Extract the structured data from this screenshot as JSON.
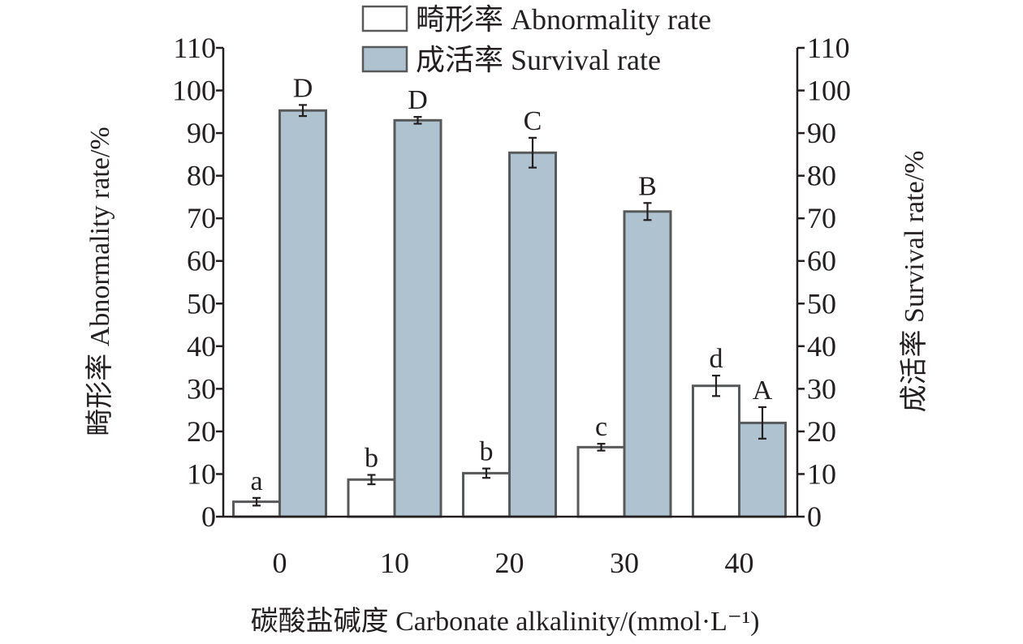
{
  "chart_data": {
    "type": "bar",
    "categories": [
      "0",
      "10",
      "20",
      "30",
      "40"
    ],
    "series": [
      {
        "name": "畸形率 Abnormality rate",
        "values": [
          3.5,
          8.7,
          10.2,
          16.3,
          30.7
        ],
        "errors": [
          0.9,
          1.1,
          1.1,
          0.8,
          2.4
        ],
        "letters": [
          "a",
          "b",
          "b",
          "c",
          "d"
        ],
        "color": "#ffffff",
        "axis": "left"
      },
      {
        "name": "成活率 Survival rate",
        "values": [
          95.3,
          93.0,
          85.4,
          71.6,
          22.0
        ],
        "errors": [
          1.3,
          0.8,
          3.5,
          2.0,
          3.7
        ],
        "letters": [
          "D",
          "D",
          "C",
          "B",
          "A"
        ],
        "color": "#aec3cf",
        "axis": "right"
      }
    ],
    "xlabel": "碳酸盐碱度 Carbonate alkalinity/(mmol·L⁻¹)",
    "ylabel": "畸形率 Abnormality rate/%",
    "y2label": "成活率 Survival rate/%",
    "ylim": [
      0,
      110
    ],
    "yticks": [
      0,
      10,
      20,
      30,
      40,
      50,
      60,
      70,
      80,
      90,
      100,
      110
    ],
    "legend_position": "top-center",
    "grid": false
  },
  "colors": {
    "bar_edge": "#58595b",
    "axis": "#231f20",
    "text": "#231f20"
  }
}
